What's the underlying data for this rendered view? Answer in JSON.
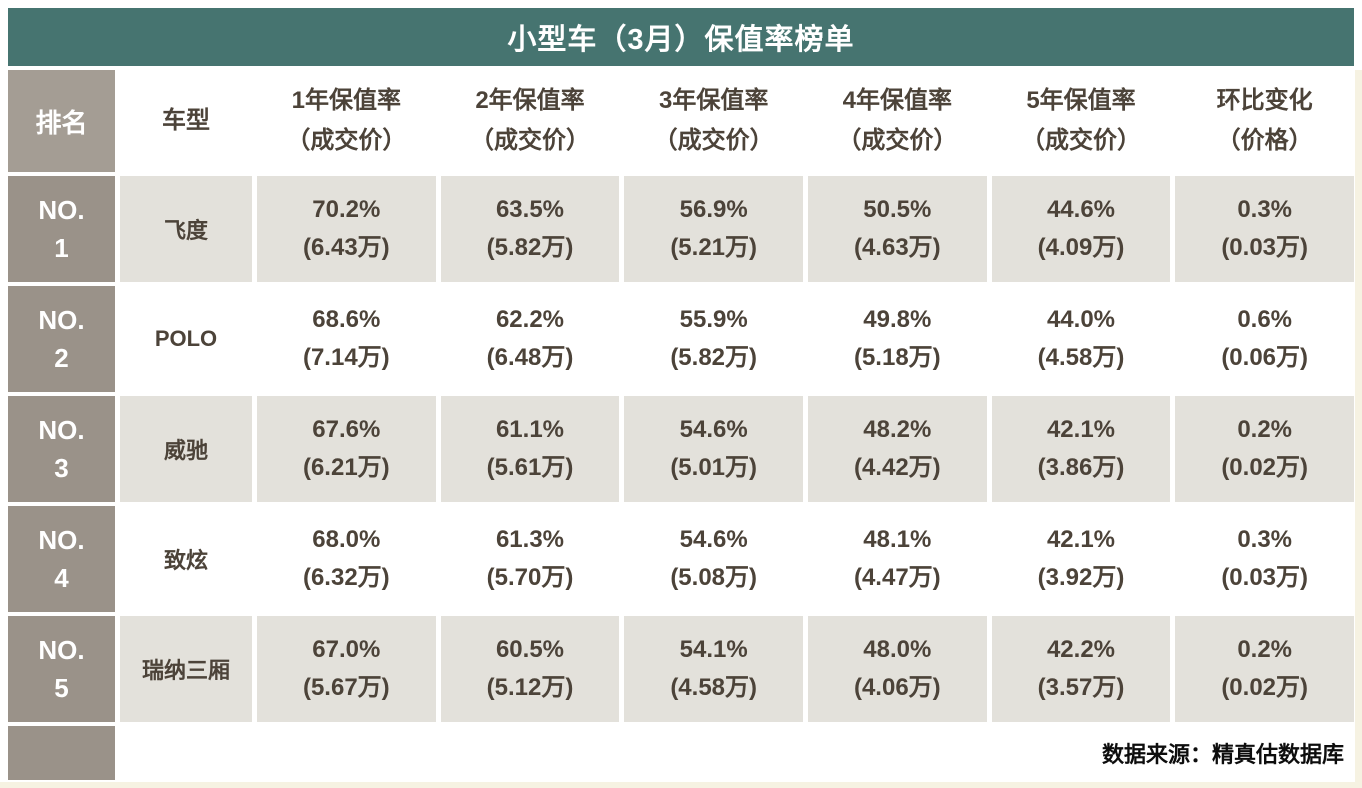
{
  "title": "小型车（3月）保值率榜单",
  "headers": {
    "rank": "排名",
    "model": "车型",
    "cols": [
      {
        "l1": "1年保值率",
        "l2": "（成交价）"
      },
      {
        "l1": "2年保值率",
        "l2": "（成交价）"
      },
      {
        "l1": "3年保值率",
        "l2": "（成交价）"
      },
      {
        "l1": "4年保值率",
        "l2": "（成交价）"
      },
      {
        "l1": "5年保值率",
        "l2": "（成交价）"
      },
      {
        "l1": "环比变化",
        "l2": "（价格）"
      }
    ]
  },
  "rows": [
    {
      "rank_label": "NO.",
      "rank_num": "1",
      "model": "飞度",
      "cells": [
        {
          "pct": "70.2%",
          "price": "(6.43万)"
        },
        {
          "pct": "63.5%",
          "price": "(5.82万)"
        },
        {
          "pct": "56.9%",
          "price": "(5.21万)"
        },
        {
          "pct": "50.5%",
          "price": "(4.63万)"
        },
        {
          "pct": "44.6%",
          "price": "(4.09万)"
        },
        {
          "pct": "0.3%",
          "price": "(0.03万)"
        }
      ]
    },
    {
      "rank_label": "NO.",
      "rank_num": "2",
      "model": "POLO",
      "cells": [
        {
          "pct": "68.6%",
          "price": "(7.14万)"
        },
        {
          "pct": "62.2%",
          "price": "(6.48万)"
        },
        {
          "pct": "55.9%",
          "price": "(5.82万)"
        },
        {
          "pct": "49.8%",
          "price": "(5.18万)"
        },
        {
          "pct": "44.0%",
          "price": "(4.58万)"
        },
        {
          "pct": "0.6%",
          "price": "(0.06万)"
        }
      ]
    },
    {
      "rank_label": "NO.",
      "rank_num": "3",
      "model": "威驰",
      "cells": [
        {
          "pct": "67.6%",
          "price": "(6.21万)"
        },
        {
          "pct": "61.1%",
          "price": "(5.61万)"
        },
        {
          "pct": "54.6%",
          "price": "(5.01万)"
        },
        {
          "pct": "48.2%",
          "price": "(4.42万)"
        },
        {
          "pct": "42.1%",
          "price": "(3.86万)"
        },
        {
          "pct": "0.2%",
          "price": "(0.02万)"
        }
      ]
    },
    {
      "rank_label": "NO.",
      "rank_num": "4",
      "model": "致炫",
      "cells": [
        {
          "pct": "68.0%",
          "price": "(6.32万)"
        },
        {
          "pct": "61.3%",
          "price": "(5.70万)"
        },
        {
          "pct": "54.6%",
          "price": "(5.08万)"
        },
        {
          "pct": "48.1%",
          "price": "(4.47万)"
        },
        {
          "pct": "42.1%",
          "price": "(3.92万)"
        },
        {
          "pct": "0.3%",
          "price": "(0.03万)"
        }
      ]
    },
    {
      "rank_label": "NO.",
      "rank_num": "5",
      "model": "瑞纳三厢",
      "cells": [
        {
          "pct": "67.0%",
          "price": "(5.67万)"
        },
        {
          "pct": "60.5%",
          "price": "(5.12万)"
        },
        {
          "pct": "54.1%",
          "price": "(4.58万)"
        },
        {
          "pct": "48.0%",
          "price": "(4.06万)"
        },
        {
          "pct": "42.2%",
          "price": "(3.57万)"
        },
        {
          "pct": "0.2%",
          "price": "(0.02万)"
        }
      ]
    }
  ],
  "footer": {
    "source": "数据来源：精真估数据库"
  },
  "colors": {
    "title_bg": "#467470",
    "rank_header_bg": "#A49D94",
    "rank_bg": "#9A9289",
    "row_alt_bg": "#E3E1DB",
    "text": "#4C4339",
    "edge_cream": "#F6F2E2"
  },
  "chart_data": {
    "type": "table",
    "title": "小型车（3月）保值率榜单",
    "columns": [
      "排名",
      "车型",
      "1年保值率（成交价）",
      "2年保值率（成交价）",
      "3年保值率（成交价）",
      "4年保值率（成交价）",
      "5年保值率（成交价）",
      "环比变化（价格）"
    ],
    "rows": [
      [
        "NO.1",
        "飞度",
        "70.2% (6.43万)",
        "63.5% (5.82万)",
        "56.9% (5.21万)",
        "50.5% (4.63万)",
        "44.6% (4.09万)",
        "0.3% (0.03万)"
      ],
      [
        "NO.2",
        "POLO",
        "68.6% (7.14万)",
        "62.2% (6.48万)",
        "55.9% (5.82万)",
        "49.8% (5.18万)",
        "44.0% (4.58万)",
        "0.6% (0.06万)"
      ],
      [
        "NO.3",
        "威驰",
        "67.6% (6.21万)",
        "61.1% (5.61万)",
        "54.6% (5.01万)",
        "48.2% (4.42万)",
        "42.1% (3.86万)",
        "0.2% (0.02万)"
      ],
      [
        "NO.4",
        "致炫",
        "68.0% (6.32万)",
        "61.3% (5.70万)",
        "54.6% (5.08万)",
        "48.1% (4.47万)",
        "42.1% (3.92万)",
        "0.3% (0.03万)"
      ],
      [
        "NO.5",
        "瑞纳三厢",
        "67.0% (5.67万)",
        "60.5% (5.12万)",
        "54.1% (4.58万)",
        "48.0% (4.06万)",
        "42.2% (3.57万)",
        "0.2% (0.02万)"
      ]
    ],
    "source": "数据来源：精真估数据库"
  }
}
